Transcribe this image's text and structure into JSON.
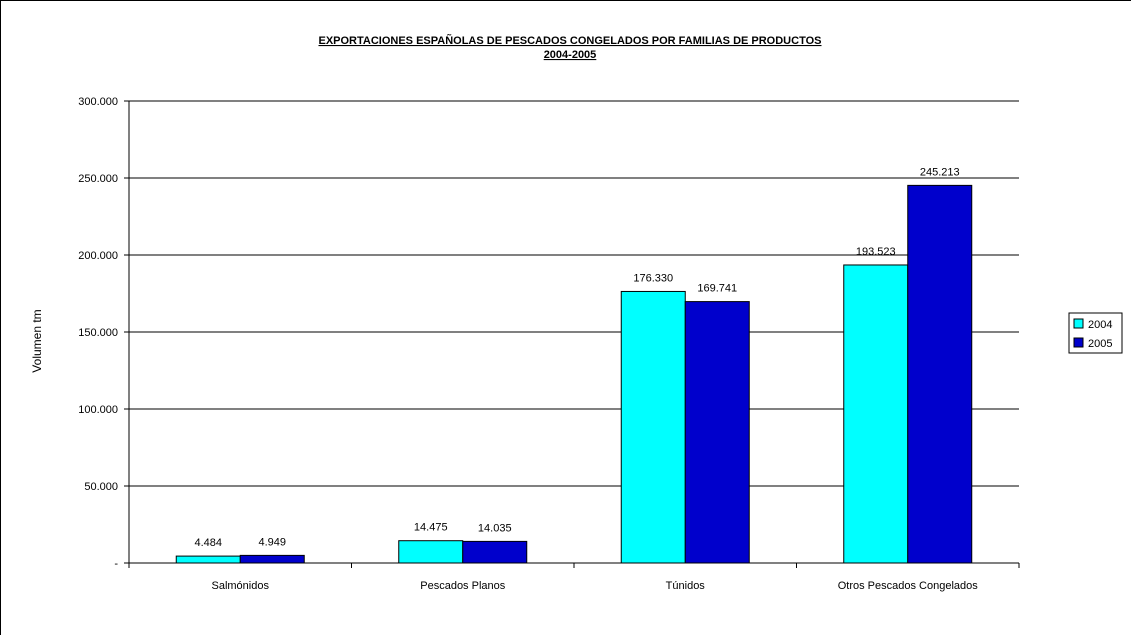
{
  "chart_data": {
    "type": "bar",
    "title": "EXPORTACIONES ESPAÑOLAS DE PESCADOS CONGELADOS POR FAMILIAS DE PRODUCTOS",
    "subtitle": "2004-2005",
    "xlabel": "",
    "ylabel": "Volumen tm",
    "ylim": [
      0,
      300000
    ],
    "yticks": [
      0,
      50000,
      100000,
      150000,
      200000,
      250000,
      300000
    ],
    "ytick_labels": [
      "-",
      "50.000",
      "100.000",
      "150.000",
      "200.000",
      "250.000",
      "300.000"
    ],
    "categories": [
      "Salmónidos",
      "Pescados Planos",
      "Túnidos",
      "Otros Pescados Congelados"
    ],
    "series": [
      {
        "name": "2004",
        "values": [
          4484,
          14475,
          176330,
          193523
        ],
        "labels": [
          "4.484",
          "14.475",
          "176.330",
          "193.523"
        ],
        "color": "#00FFFF"
      },
      {
        "name": "2005",
        "values": [
          4949,
          14035,
          169741,
          245213
        ],
        "labels": [
          "4.949",
          "14.035",
          "169.741",
          "245.213"
        ],
        "color": "#0000CC"
      }
    ],
    "grid": true,
    "legend_position": "right"
  }
}
